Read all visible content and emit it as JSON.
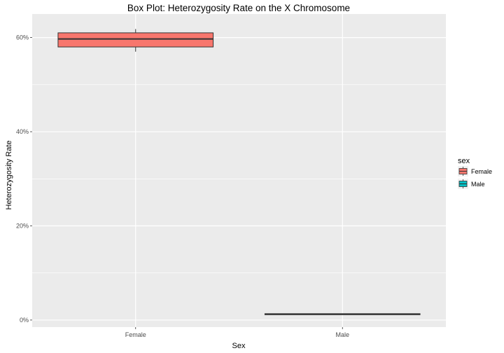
{
  "chart_data": {
    "type": "box",
    "title": "Box Plot: Heterozygosity Rate on the X Chromosome",
    "xlabel": "Sex",
    "ylabel": "Heterozygosity Rate",
    "categories": [
      "Female",
      "Male"
    ],
    "y_ticks": [
      0,
      0.2,
      0.4,
      0.6
    ],
    "y_tick_labels": [
      "0%",
      "20%",
      "40%",
      "60%"
    ],
    "ylim": [
      -0.015,
      0.65
    ],
    "grid": true,
    "legend": {
      "title": "sex",
      "position": "right",
      "entries": [
        "Female",
        "Male"
      ]
    },
    "series": [
      {
        "name": "Female",
        "color": "#F8766D",
        "whisker_low": 0.57,
        "q1": 0.58,
        "median": 0.597,
        "q3": 0.61,
        "whisker_high": 0.618
      },
      {
        "name": "Male",
        "color": "#00BFC4",
        "whisker_low": 0.011,
        "q1": 0.0115,
        "median": 0.0125,
        "q3": 0.0135,
        "whisker_high": 0.014
      }
    ]
  }
}
